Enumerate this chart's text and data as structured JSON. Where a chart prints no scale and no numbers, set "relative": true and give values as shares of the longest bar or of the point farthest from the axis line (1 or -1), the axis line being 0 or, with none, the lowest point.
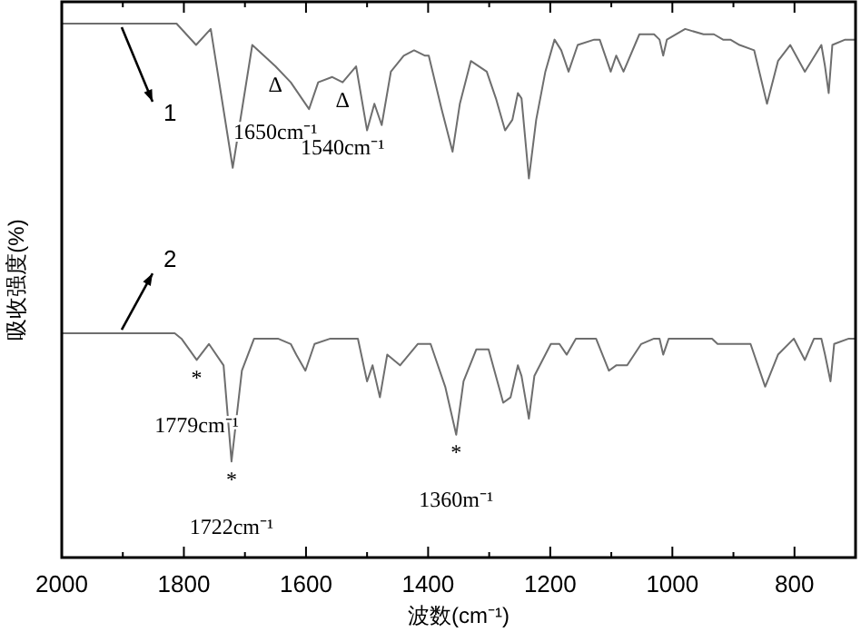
{
  "chart_data": {
    "type": "line",
    "relative": true,
    "xlabel": "波数(cm⁻¹)",
    "ylabel": "吸收强度(%)",
    "xlim": [
      2000,
      700
    ],
    "xticks": [
      2000,
      {
        "value": 1900,
        "label": null
      },
      1800,
      {
        "value": 1700,
        "label": null
      },
      1600,
      {
        "value": 1500,
        "label": null
      },
      1400,
      {
        "value": 1300,
        "label": null
      },
      1200,
      {
        "value": 1100,
        "label": null
      },
      1000,
      {
        "value": 900,
        "label": null
      },
      800,
      {
        "value": 700,
        "label": null
      }
    ],
    "series": [
      {
        "name": "1",
        "color": "#6e6e6e",
        "x": [
          2000,
          1812,
          1780,
          1756,
          1720,
          1688,
          1650,
          1625,
          1595,
          1580,
          1557,
          1540,
          1518,
          1500,
          1488,
          1476,
          1461,
          1440,
          1423,
          1405,
          1399,
          1378,
          1360,
          1348,
          1330,
          1304,
          1289,
          1274,
          1262,
          1253,
          1247,
          1235,
          1223,
          1208,
          1193,
          1182,
          1170,
          1155,
          1128,
          1119,
          1101,
          1092,
          1080,
          1054,
          1030,
          1021,
          1015,
          1009,
          979,
          949,
          932,
          917,
          905,
          890,
          866,
          845,
          827,
          807,
          783,
          756,
          750,
          744,
          738,
          717,
          700
        ],
        "values": [
          1.0,
          1.0,
          0.96,
          0.99,
          0.73,
          0.96,
          0.92,
          0.89,
          0.84,
          0.89,
          0.9,
          0.89,
          0.92,
          0.8,
          0.85,
          0.81,
          0.91,
          0.94,
          0.95,
          0.94,
          0.94,
          0.84,
          0.76,
          0.85,
          0.93,
          0.91,
          0.86,
          0.8,
          0.82,
          0.87,
          0.86,
          0.71,
          0.82,
          0.91,
          0.97,
          0.95,
          0.91,
          0.96,
          0.97,
          0.97,
          0.91,
          0.94,
          0.91,
          0.98,
          0.98,
          0.97,
          0.94,
          0.97,
          0.99,
          0.98,
          0.98,
          0.97,
          0.97,
          0.96,
          0.95,
          0.85,
          0.93,
          0.96,
          0.91,
          0.96,
          0.92,
          0.87,
          0.96,
          0.97,
          0.97
        ]
      },
      {
        "name": "2",
        "color": "#6e6e6e",
        "x": [
          2000,
          1815,
          1804,
          1779,
          1759,
          1735,
          1722,
          1705,
          1685,
          1646,
          1625,
          1616,
          1601,
          1586,
          1560,
          1515,
          1500,
          1491,
          1479,
          1467,
          1446,
          1417,
          1396,
          1372,
          1354,
          1342,
          1321,
          1301,
          1277,
          1265,
          1253,
          1247,
          1235,
          1226,
          1199,
          1185,
          1173,
          1158,
          1125,
          1104,
          1092,
          1074,
          1051,
          1030,
          1021,
          1015,
          1006,
          935,
          926,
          911,
          872,
          848,
          827,
          801,
          783,
          768,
          756,
          750,
          741,
          735,
          711,
          700
        ],
        "values": [
          0.42,
          0.42,
          0.41,
          0.37,
          0.4,
          0.36,
          0.18,
          0.35,
          0.41,
          0.41,
          0.4,
          0.38,
          0.35,
          0.4,
          0.41,
          0.41,
          0.33,
          0.36,
          0.3,
          0.38,
          0.36,
          0.4,
          0.4,
          0.32,
          0.23,
          0.33,
          0.39,
          0.39,
          0.29,
          0.3,
          0.36,
          0.34,
          0.26,
          0.34,
          0.4,
          0.4,
          0.38,
          0.41,
          0.41,
          0.35,
          0.36,
          0.36,
          0.4,
          0.41,
          0.41,
          0.38,
          0.41,
          0.41,
          0.4,
          0.4,
          0.4,
          0.32,
          0.38,
          0.41,
          0.37,
          0.41,
          0.41,
          0.38,
          0.33,
          0.4,
          0.41,
          0.41
        ]
      }
    ],
    "annotations": [
      {
        "text": "Δ",
        "x": 1650,
        "y": 0.92
      },
      {
        "text": "1650cm⁻¹",
        "x": 1650,
        "y": 0.92
      },
      {
        "text": "Δ",
        "x": 1540,
        "y": 0.89
      },
      {
        "text": "1540cm⁻¹",
        "x": 1540,
        "y": 0.89
      },
      {
        "text": "*",
        "x": 1779,
        "y": 0.37
      },
      {
        "text": "1779cm⁻¹",
        "x": 1779,
        "y": 0.37
      },
      {
        "text": "*",
        "x": 1722,
        "y": 0.18
      },
      {
        "text": "1722cm⁻¹",
        "x": 1722,
        "y": 0.18
      },
      {
        "text": "*",
        "x": 1354,
        "y": 0.23
      },
      {
        "text": "1360m⁻¹",
        "x": 1354,
        "y": 0.23
      }
    ]
  }
}
